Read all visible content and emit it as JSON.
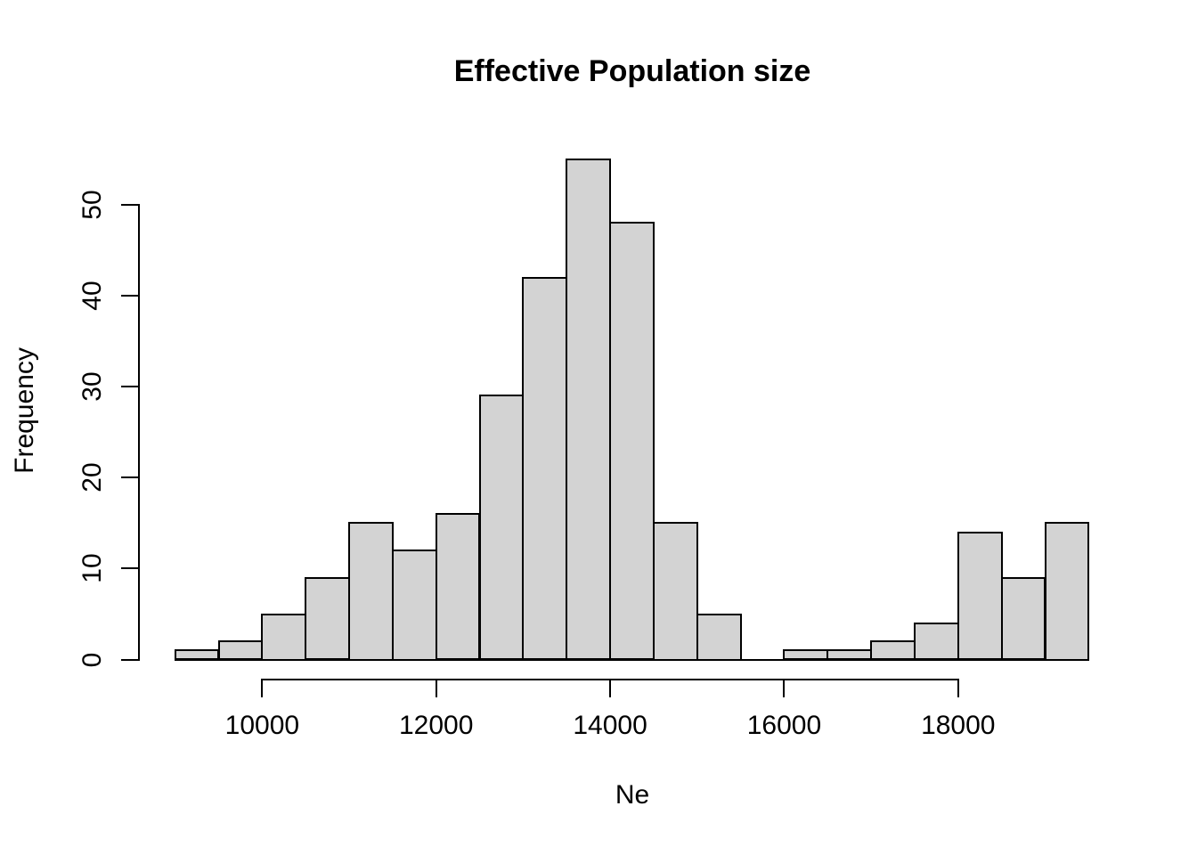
{
  "chart_data": {
    "type": "bar",
    "subtype": "histogram",
    "title": "Effective Population size",
    "xlabel": "Ne",
    "ylabel": "Frequency",
    "bin_start": 9000,
    "bin_width": 500,
    "counts": [
      1,
      2,
      5,
      9,
      15,
      12,
      16,
      29,
      42,
      55,
      48,
      15,
      5,
      0,
      1,
      1,
      2,
      4,
      14,
      9,
      15
    ],
    "x_ticks": [
      10000,
      12000,
      14000,
      16000,
      18000
    ],
    "y_ticks": [
      0,
      10,
      20,
      30,
      40,
      50
    ],
    "xlim": [
      9000,
      19500
    ],
    "ylim": [
      0,
      55
    ],
    "grid": false,
    "legend": "none",
    "bar_fill_color": "#d3d3d3",
    "bar_border_color": "#000000",
    "axis_color": "#000000",
    "text_color": "#000000",
    "background_color": "#ffffff"
  }
}
